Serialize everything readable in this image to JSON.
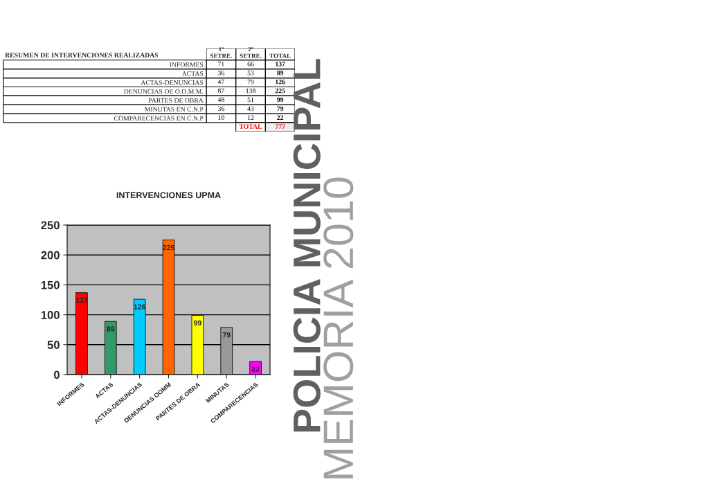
{
  "chart_data": [
    {
      "type": "heatmap",
      "title": "RESUMEN DE INTERVENCIONES REALIZADAS",
      "categories": [
        "1º\nSETRE.",
        "2º\nSETRE.",
        "TOTAL"
      ],
      "y_categories": [
        "INFORMES",
        "ACTAS",
        "ACTAS-DENUNCIAS",
        "DENUNCIAS DE O.O.M.M.",
        "PARTES DE OBRA",
        "MINUTAS EN C.N.P",
        "COMPARECENCIAS EN C.N.P",
        null
      ],
      "cells": [
        [
          71,
          66,
          137
        ],
        [
          36,
          53,
          89
        ],
        [
          47,
          79,
          126
        ],
        [
          87,
          138,
          225
        ],
        [
          48,
          51,
          99
        ],
        [
          36,
          43,
          79
        ],
        [
          10,
          12,
          22
        ],
        [
          null,
          null,
          777
        ]
      ],
      "cell_labels": [
        [
          "71",
          "66",
          "137"
        ],
        [
          "36",
          "53",
          "89"
        ],
        [
          "47",
          "79",
          "126"
        ],
        [
          "87",
          "138",
          "225"
        ],
        [
          "48",
          "51",
          "99"
        ],
        [
          "36",
          "43",
          "79"
        ],
        [
          "10",
          "12",
          "22"
        ],
        [
          null,
          "TOTAL",
          "777"
        ]
      ]
    },
    {
      "type": "bar",
      "title": "INTERVENCIONES UPMA",
      "categories": [
        "INFORMES",
        "ACTAS",
        "ACTAS-DENUNCIAS",
        "DENUNCIAS OOMM",
        "PARTES DE OBRA",
        "MINUTAS",
        "COMPARECENCIAS"
      ],
      "values": [
        137,
        89,
        126,
        225,
        99,
        79,
        22
      ],
      "colors": [
        "#ff0000",
        "#339966",
        "#00ccff",
        "#ff6600",
        "#ffff00",
        "#999999",
        "#ff00ff"
      ],
      "ylim": [
        0,
        250
      ],
      "yticks": [
        0,
        50,
        100,
        150,
        200,
        250
      ],
      "grid": "y",
      "legend": false,
      "data_labels": true
    },
    {
      "type": "other",
      "annotations": [
        "POLICIA MUNICIPAL",
        "MEMORIA 2010"
      ]
    }
  ]
}
